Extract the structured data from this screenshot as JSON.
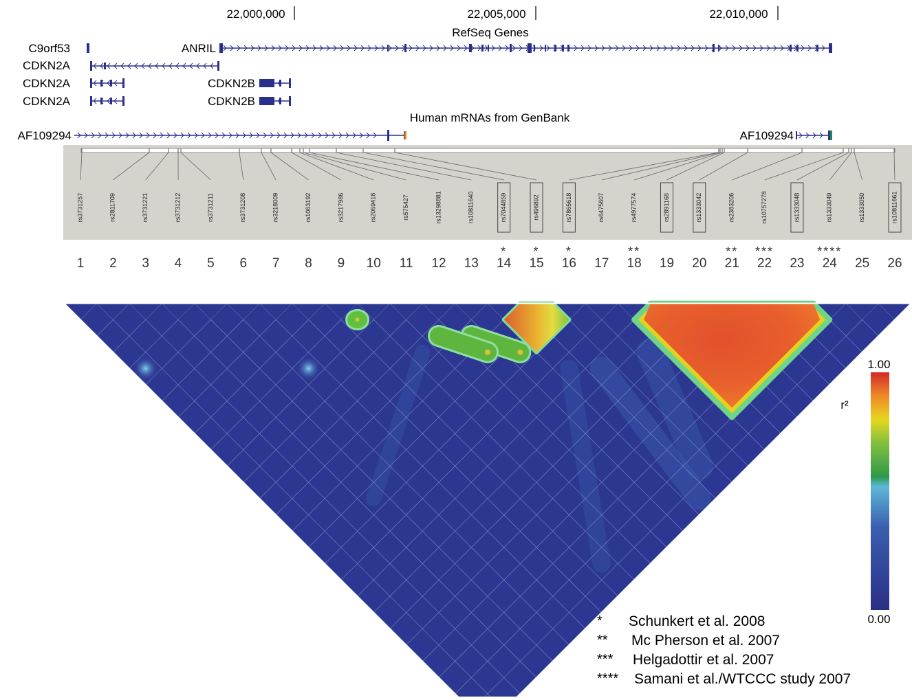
{
  "coordinates": [
    "22,000,000",
    "22,005,000",
    "22,010,000"
  ],
  "track_titles": {
    "refseq": "RefSeq Genes",
    "mrna": "Human mRNAs from GenBank"
  },
  "genes": [
    "C9orf53",
    "ANRIL",
    "CDKN2A",
    "CDKN2A",
    "CDKN2A",
    "CDKN2B",
    "CDKN2B"
  ],
  "mrnas": [
    "AF109294",
    "AF109294"
  ],
  "snps": [
    {
      "index": "1",
      "id": "rs3731257",
      "boxed": false,
      "stars": ""
    },
    {
      "index": "2",
      "id": "rs2811709",
      "boxed": false,
      "stars": ""
    },
    {
      "index": "3",
      "id": "rs3731221",
      "boxed": false,
      "stars": ""
    },
    {
      "index": "4",
      "id": "rs3731212",
      "boxed": false,
      "stars": ""
    },
    {
      "index": "5",
      "id": "rs3731211",
      "boxed": false,
      "stars": ""
    },
    {
      "index": "6",
      "id": "rs3731208",
      "boxed": false,
      "stars": ""
    },
    {
      "index": "7",
      "id": "rs3218009",
      "boxed": false,
      "stars": ""
    },
    {
      "index": "8",
      "id": "rs1063192",
      "boxed": false,
      "stars": ""
    },
    {
      "index": "9",
      "id": "rs3217986",
      "boxed": false,
      "stars": ""
    },
    {
      "index": "10",
      "id": "rs2069418",
      "boxed": false,
      "stars": ""
    },
    {
      "index": "11",
      "id": "rs575427",
      "boxed": false,
      "stars": ""
    },
    {
      "index": "12",
      "id": "rs13298881",
      "boxed": false,
      "stars": ""
    },
    {
      "index": "13",
      "id": "rs10811640",
      "boxed": false,
      "stars": ""
    },
    {
      "index": "14",
      "id": "rs7044859",
      "boxed": true,
      "stars": "*"
    },
    {
      "index": "15",
      "id": "rs496892",
      "boxed": true,
      "stars": "*"
    },
    {
      "index": "16",
      "id": "rs7865618",
      "boxed": true,
      "stars": "*"
    },
    {
      "index": "17",
      "id": "rs6475607",
      "boxed": false,
      "stars": ""
    },
    {
      "index": "18",
      "id": "rs4977574",
      "boxed": false,
      "stars": "**"
    },
    {
      "index": "19",
      "id": "rs2891168",
      "boxed": true,
      "stars": ""
    },
    {
      "index": "20",
      "id": "rs1333042",
      "boxed": true,
      "stars": ""
    },
    {
      "index": "21",
      "id": "rs2383206",
      "boxed": false,
      "stars": "**"
    },
    {
      "index": "22",
      "id": "rs10757278",
      "boxed": false,
      "stars": "***"
    },
    {
      "index": "23",
      "id": "rs1333048",
      "boxed": true,
      "stars": ""
    },
    {
      "index": "24",
      "id": "rs1333049",
      "boxed": false,
      "stars": "****"
    },
    {
      "index": "25",
      "id": "rs1333050",
      "boxed": false,
      "stars": ""
    },
    {
      "index": "26",
      "id": "rs10811661",
      "boxed": true,
      "stars": ""
    }
  ],
  "ld_blocks": [
    {
      "snps": [
        14,
        15,
        16
      ],
      "peak": 0.95
    },
    {
      "snps": [
        18,
        19,
        20,
        21,
        22,
        23,
        24
      ],
      "peak": 0.93
    },
    {
      "snps": [
        9,
        10
      ],
      "peak": 0.7
    },
    {
      "snps": [
        12,
        13,
        14,
        15
      ],
      "peak": 0.6
    },
    {
      "snps": [
        11,
        12,
        13,
        14
      ],
      "peak": 0.6
    }
  ],
  "colorbar": {
    "label": "r²",
    "max_label": "1.00",
    "min_label": "0.00"
  },
  "legend": [
    {
      "marker": "*",
      "text": "Schunkert et al. 2008"
    },
    {
      "marker": "**",
      "text": "Mc Pherson et al. 2007"
    },
    {
      "marker": "***",
      "text": "Helgadottir et al. 2007"
    },
    {
      "marker": "****",
      "text": "Samani et al./WTCCC study 2007"
    }
  ],
  "colors": {
    "gene": "#2a2f8c",
    "heat_low": "#2b3590",
    "heat_high": "#d7352a",
    "panel_bg": "#d6d3cd"
  }
}
